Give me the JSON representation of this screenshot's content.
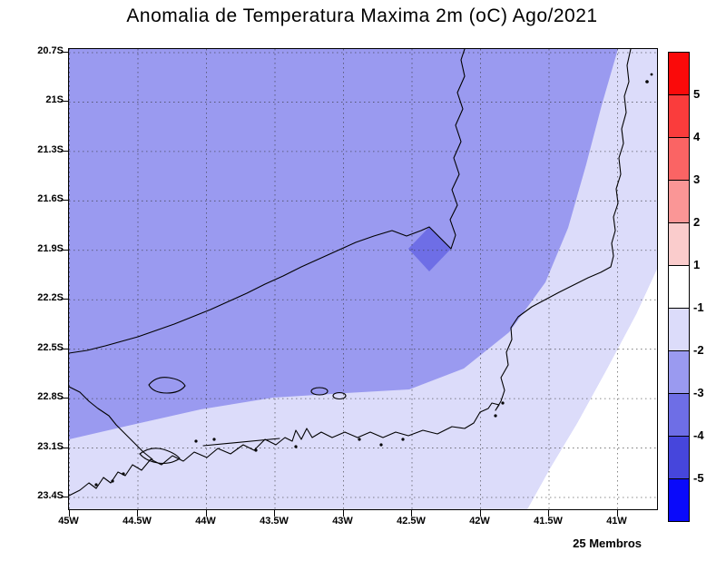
{
  "title": "Anomalia de Temperatura Maxima 2m (oC) Ago/2021",
  "footer": "25 Membros",
  "axes": {
    "lat_ticks": [
      "20.7S",
      "21S",
      "21.3S",
      "21.6S",
      "21.9S",
      "22.2S",
      "22.5S",
      "22.8S",
      "23.1S",
      "23.4S"
    ],
    "lon_ticks": [
      "45W",
      "44.5W",
      "44W",
      "43.5W",
      "43W",
      "42.5W",
      "42W",
      "41.5W",
      "41W"
    ]
  },
  "colorbar": {
    "labels": [
      "5",
      "4",
      "3",
      "2",
      "1",
      "-1",
      "-2",
      "-3",
      "-4",
      "-5"
    ],
    "colors": [
      "#fa0a0a",
      "#fa3c3c",
      "#fa6464",
      "#fa9696",
      "#facccc",
      "#ffffff",
      "#dcdcfa",
      "#9a9af0",
      "#6e6ee6",
      "#4646dc",
      "#0a0afa"
    ]
  },
  "chart_data": {
    "type": "heatmap",
    "title": "Anomalia de Temperatura Maxima 2m (oC) Ago/2021",
    "variable": "Anomalia de Temperatura Maxima a 2m",
    "unit": "oC",
    "period": "Ago/2021",
    "ensemble_label": "25 Membros",
    "lon_ticks": [
      "45W",
      "44.5W",
      "44W",
      "43.5W",
      "43W",
      "42.5W",
      "42W",
      "41.5W",
      "41W"
    ],
    "lat_ticks": [
      "20.7S",
      "21S",
      "21.3S",
      "21.6S",
      "21.9S",
      "22.2S",
      "22.5S",
      "22.8S",
      "23.1S",
      "23.4S"
    ],
    "lon_range": [
      "45W",
      "40.7W"
    ],
    "lat_range": [
      "20.65S",
      "23.45S"
    ],
    "contour_levels": [
      -5,
      -4,
      -3,
      -2,
      -1,
      1,
      2,
      3,
      4,
      5
    ],
    "grid": "dashed",
    "legend_position": "right-vertical-colorbar",
    "regions": [
      {
        "value_range": "-3 to -2",
        "color": "#9a9af0",
        "description": "dominant anomaly over most of the domain (interior / Rio de Janeiro state)"
      },
      {
        "value_range": "-2 to -1",
        "color": "#dcdcfa",
        "description": "band over the southwest corner, along the southern coastline and sweeping up the eastern side to the top-right corner"
      },
      {
        "value_range": "-1 to 1",
        "color": "#ffffff",
        "description": "near-zero anomaly offshore in the lower-right (southeast ocean) corner"
      },
      {
        "value_range": "-4 to -3",
        "color": "#6e6ee6",
        "description": "small diamond-shaped pocket near 42.4W, 21.9S at the state-border bend"
      }
    ]
  }
}
